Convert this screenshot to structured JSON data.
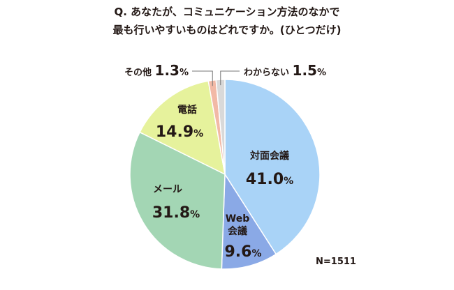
{
  "title": {
    "line1": "Q. あなたが、コミュニケーション方法のなかで",
    "line2": "最も行いやすいものはどれですか。(ひとつだけ)"
  },
  "note": "N=1511",
  "chart_data": {
    "type": "pie",
    "start": "12 o'clock",
    "direction": "clockwise",
    "slices": [
      {
        "label": "対面会議",
        "value": 41.0,
        "display": "41.0",
        "color": "#a9d3f7"
      },
      {
        "label": "Web会議",
        "value": 9.6,
        "display": "9.6",
        "color": "#8aa9e6"
      },
      {
        "label": "メール",
        "value": 31.8,
        "display": "31.8",
        "color": "#a3d6b4"
      },
      {
        "label": "電話",
        "value": 14.9,
        "display": "14.9",
        "color": "#e6f29c"
      },
      {
        "label": "その他",
        "value": 1.3,
        "display": "1.3",
        "color": "#f2b9a6"
      },
      {
        "label": "わからない",
        "value": 1.5,
        "display": "1.5",
        "color": "#d9d9d9"
      }
    ],
    "unit": "%"
  }
}
